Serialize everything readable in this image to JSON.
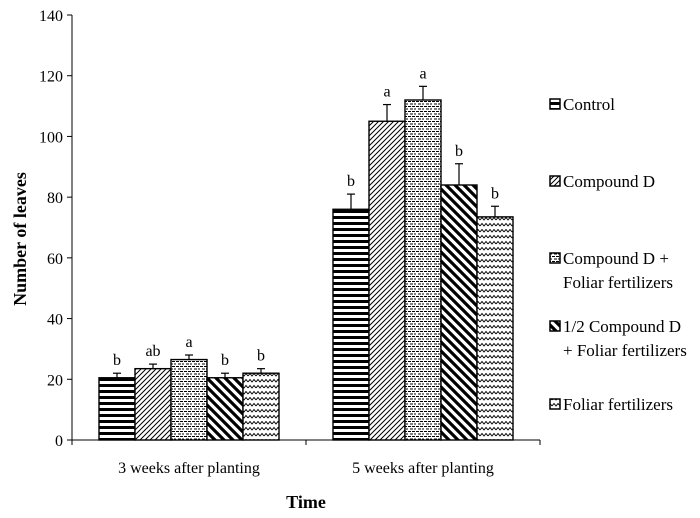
{
  "chart_data": {
    "type": "bar",
    "title": "",
    "xlabel": "Time",
    "ylabel": "Number of leaves",
    "ylim": [
      0,
      140
    ],
    "yticks": [
      0,
      20,
      40,
      60,
      80,
      100,
      120,
      140
    ],
    "categories": [
      "3 weeks after planting",
      "5 weeks after planting"
    ],
    "series": [
      {
        "name": "Control",
        "pattern": "horizontal-lines",
        "values": [
          20.5,
          76
        ],
        "errors": [
          1.5,
          5
        ],
        "significance": [
          "b",
          "b"
        ]
      },
      {
        "name": "Compound D",
        "pattern": "diagonal-up",
        "values": [
          23.5,
          105
        ],
        "errors": [
          1.5,
          5.5
        ],
        "significance": [
          "ab",
          "a"
        ]
      },
      {
        "name": "Compound D + Foliar fertilizers",
        "legend_lines": [
          "Compound D +",
          "Foliar fertilizers"
        ],
        "pattern": "dense-dash",
        "values": [
          26.5,
          112
        ],
        "errors": [
          1.5,
          4.5
        ],
        "significance": [
          "a",
          "a"
        ]
      },
      {
        "name": "1/2 Compound D + Foliar fertilizers",
        "legend_lines": [
          "1/2 Compound D",
          "+ Foliar fertilizers"
        ],
        "pattern": "diagonal-down",
        "values": [
          20.5,
          84
        ],
        "errors": [
          1.5,
          7
        ],
        "significance": [
          "b",
          "b"
        ]
      },
      {
        "name": "Foliar fertilizers",
        "pattern": "zigzag",
        "values": [
          22,
          73.5
        ],
        "errors": [
          1.5,
          3.5
        ],
        "significance": [
          "b",
          "b"
        ]
      }
    ],
    "legend_position": "right",
    "grid": false
  },
  "colors": {
    "ink": "#000000",
    "background": "#ffffff"
  }
}
